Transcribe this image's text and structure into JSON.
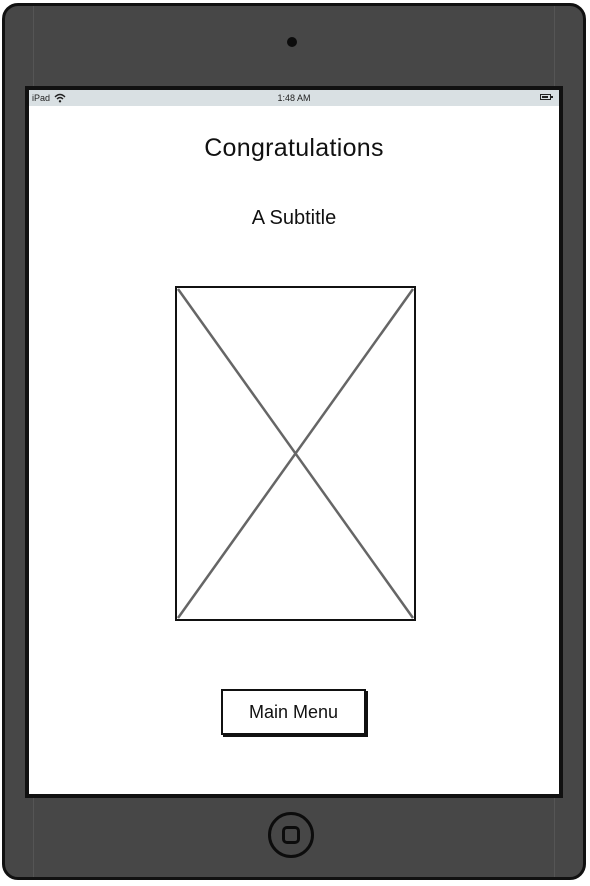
{
  "status_bar": {
    "device": "iPad",
    "time": "1:48 AM",
    "icons": [
      "wifi-icon",
      "battery-icon"
    ]
  },
  "screen": {
    "title": "Congratulations",
    "subtitle": "A Subtitle",
    "image": "image-placeholder-icon",
    "button_label": "Main Menu"
  },
  "device": {
    "frame_color": "#474747",
    "border_color": "#111111",
    "status_bar_color": "#d9e0e3",
    "hardware": [
      "camera",
      "home-button"
    ]
  }
}
